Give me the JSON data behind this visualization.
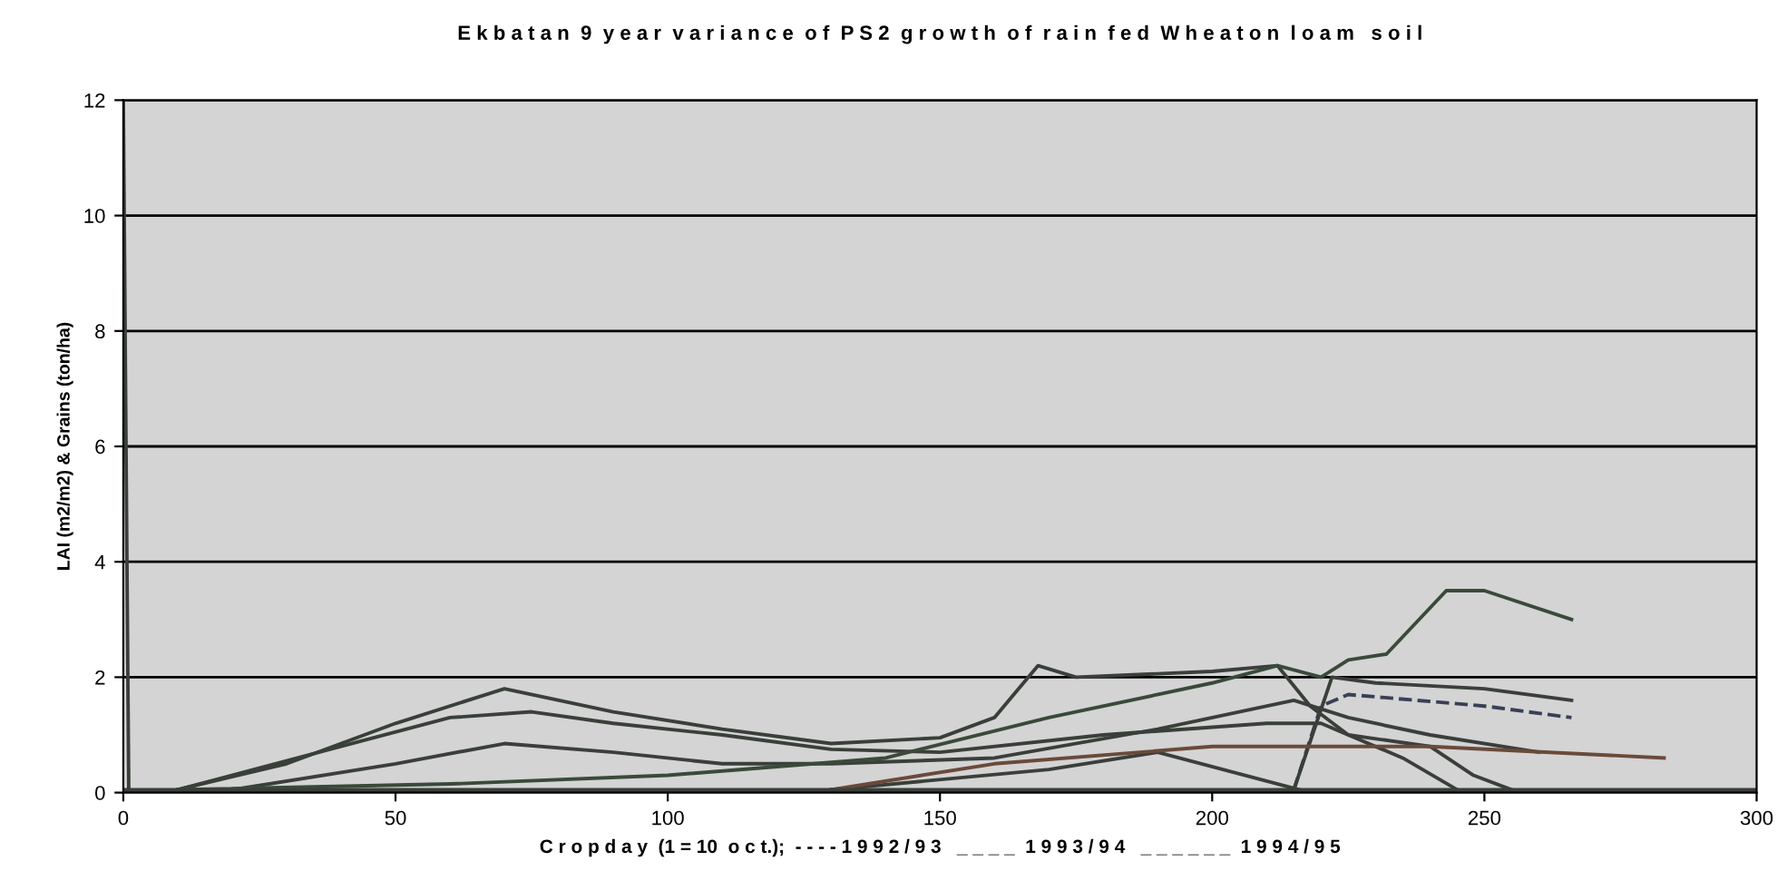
{
  "chart_data": {
    "type": "line",
    "title": "E k b a t a n  9  y e a r  v a r i a n c e  o f  P S 2  g r o w t h  o f  r a i n  f e d  W h e a t o n  l o a m   s o i l",
    "xlabel": "C r o p d a y  (1 = 10  o c t.);  - - - - 1 9 9 2 / 9 3   _ _ _ _  1 9 9 3 / 9 4   _ _ _ _ _ _  1 9 9 4 / 9 5",
    "ylabel": "LAI (m2/m2) & Grains (ton/ha)",
    "xlim": [
      0,
      300
    ],
    "ylim": [
      0,
      12
    ],
    "xticks": [
      0,
      50,
      100,
      150,
      200,
      250,
      300
    ],
    "yticks": [
      0,
      2,
      4,
      6,
      8,
      10,
      12
    ],
    "grid": "y",
    "legend": false,
    "marker": "none",
    "series": [
      {
        "color": "#3a3f3a",
        "x": [
          0,
          1
        ],
        "values": [
          12,
          0.05
        ]
      },
      {
        "color": "#3a3f3a",
        "x": [
          10,
          30,
          50,
          70,
          90,
          110,
          130,
          150,
          160,
          168,
          175,
          200,
          212,
          218,
          225,
          240,
          248,
          255
        ],
        "values": [
          0.05,
          0.5,
          1.2,
          1.8,
          1.4,
          1.1,
          0.85,
          0.95,
          1.3,
          2.2,
          2.0,
          2.1,
          2.2,
          1.5,
          1.0,
          0.8,
          0.3,
          0.05
        ]
      },
      {
        "color": "#3a3f3a",
        "x": [
          10,
          40,
          60,
          75,
          90,
          110,
          130,
          150,
          180,
          210,
          220,
          235,
          245
        ],
        "values": [
          0.05,
          0.8,
          1.3,
          1.4,
          1.2,
          1.0,
          0.75,
          0.7,
          1.0,
          1.2,
          1.2,
          0.6,
          0.05
        ]
      },
      {
        "color": "#3a3f3a",
        "x": [
          20,
          50,
          70,
          90,
          110,
          130,
          160,
          190,
          215,
          225,
          240,
          260
        ],
        "values": [
          0.05,
          0.5,
          0.85,
          0.7,
          0.5,
          0.5,
          0.6,
          1.1,
          1.6,
          1.3,
          1.0,
          0.7
        ]
      },
      {
        "color": "#3a4a3a",
        "x": [
          10,
          60,
          100,
          140,
          170,
          200,
          212,
          220,
          225,
          232,
          243,
          250,
          266
        ],
        "values": [
          0.05,
          0.15,
          0.3,
          0.6,
          1.3,
          1.9,
          2.2,
          2.0,
          2.3,
          2.4,
          3.5,
          3.5,
          3.0
        ]
      },
      {
        "color": "#3a3f3a",
        "x": [
          130,
          170,
          190,
          210,
          216
        ],
        "values": [
          0.05,
          0.4,
          0.7,
          0.2,
          0.05
        ]
      },
      {
        "color": "#3a3f55",
        "line_style": "dashed",
        "x": [
          215,
          220,
          225,
          250,
          266
        ],
        "values": [
          0.05,
          1.5,
          1.7,
          1.5,
          1.3
        ]
      },
      {
        "color": "#3a3f3a",
        "x": [
          215,
          222,
          230,
          250,
          266
        ],
        "values": [
          0.05,
          2.0,
          1.9,
          1.8,
          1.6
        ]
      },
      {
        "color": "#6a4a3a",
        "x": [
          130,
          160,
          200,
          215,
          240,
          283
        ],
        "values": [
          0.05,
          0.5,
          0.8,
          0.8,
          0.8,
          0.6
        ]
      },
      {
        "color": "#3a3f3a",
        "x": [
          0,
          300
        ],
        "values": [
          0.05,
          0.05
        ]
      }
    ]
  }
}
